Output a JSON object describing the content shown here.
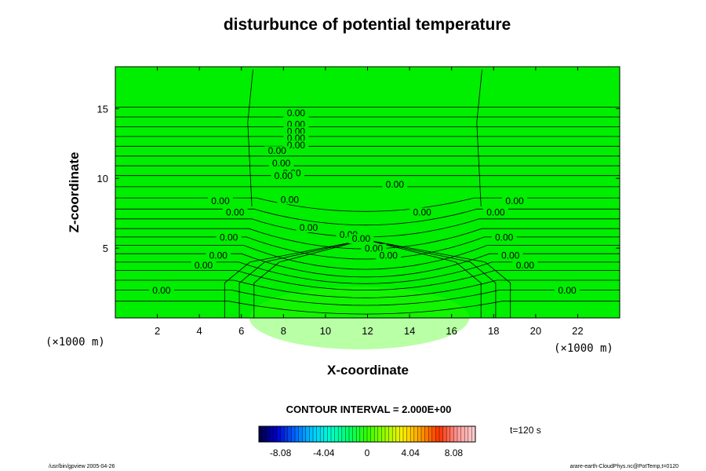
{
  "chart_data": {
    "type": "heatmap",
    "title": "disturbunce of potential temperature",
    "xlabel": "X-coordinate",
    "ylabel": "Z-coordinate",
    "x_unit_label": "(×1000 m)",
    "xlim": [
      0,
      24
    ],
    "ylim": [
      0,
      18
    ],
    "x_ticks": [
      2,
      4,
      6,
      8,
      10,
      12,
      14,
      16,
      18,
      20,
      22
    ],
    "y_ticks": [
      5,
      10,
      15
    ],
    "field_color": "#00ee00",
    "field_note_color": "#33ff00",
    "contour_interval_text": "CONTOUR INTERVAL = 2.000E+00",
    "contour_labels": [
      {
        "x": 8.6,
        "z": 14.5,
        "text": "0.00"
      },
      {
        "x": 8.6,
        "z": 13.7,
        "text": "0.00"
      },
      {
        "x": 8.6,
        "z": 13.2,
        "text": "0.00"
      },
      {
        "x": 8.6,
        "z": 12.7,
        "text": "0.00"
      },
      {
        "x": 8.6,
        "z": 12.2,
        "text": "0.00"
      },
      {
        "x": 7.7,
        "z": 11.8,
        "text": "0.00"
      },
      {
        "x": 7.9,
        "z": 10.9,
        "text": "0.00"
      },
      {
        "x": 8.4,
        "z": 10.2,
        "text": "0.00"
      },
      {
        "x": 8.0,
        "z": 10.0,
        "text": "0.00"
      },
      {
        "x": 13.3,
        "z": 9.4,
        "text": "0.00"
      },
      {
        "x": 5.0,
        "z": 8.2,
        "text": "0.00"
      },
      {
        "x": 8.3,
        "z": 8.3,
        "text": "0.00"
      },
      {
        "x": 19.0,
        "z": 8.2,
        "text": "0.00"
      },
      {
        "x": 5.7,
        "z": 7.4,
        "text": "0.00"
      },
      {
        "x": 14.6,
        "z": 7.4,
        "text": "0.00"
      },
      {
        "x": 18.1,
        "z": 7.4,
        "text": "0.00"
      },
      {
        "x": 9.2,
        "z": 6.3,
        "text": "0.00"
      },
      {
        "x": 11.1,
        "z": 5.8,
        "text": "0.00"
      },
      {
        "x": 5.4,
        "z": 5.6,
        "text": "0.00"
      },
      {
        "x": 11.7,
        "z": 5.5,
        "text": "0.00"
      },
      {
        "x": 18.5,
        "z": 5.6,
        "text": "0.00"
      },
      {
        "x": 12.3,
        "z": 4.8,
        "text": "0.00"
      },
      {
        "x": 13.0,
        "z": 4.3,
        "text": "0.00"
      },
      {
        "x": 4.9,
        "z": 4.3,
        "text": "0.00"
      },
      {
        "x": 18.8,
        "z": 4.3,
        "text": "0.00"
      },
      {
        "x": 4.2,
        "z": 3.6,
        "text": "0.00"
      },
      {
        "x": 19.5,
        "z": 3.6,
        "text": "0.00"
      },
      {
        "x": 2.2,
        "z": 1.8,
        "text": "0.00"
      },
      {
        "x": 21.5,
        "z": 1.8,
        "text": "0.00"
      }
    ],
    "colorbar": {
      "min": -10.1,
      "max": 10.1,
      "ticks": [
        {
          "value": -8.08,
          "label": "-8.08"
        },
        {
          "value": -4.04,
          "label": "-4.04"
        },
        {
          "value": 0,
          "label": "0"
        },
        {
          "value": 4.04,
          "label": "4.04"
        },
        {
          "value": 8.08,
          "label": "8.08"
        }
      ],
      "colors": [
        "#000040",
        "#0000cc",
        "#0066ff",
        "#00ccff",
        "#00ffcc",
        "#00ff66",
        "#33ff00",
        "#99ff00",
        "#ffee00",
        "#ff9900",
        "#ff3300",
        "#ff9999",
        "#ffd0d0"
      ]
    }
  },
  "time_label": "t=120 s",
  "footer": {
    "left": "/usr/bin/gpview 2005-04-26",
    "right": "arare-earth-CloudPhys.nc@PotTemp,t=0120"
  }
}
